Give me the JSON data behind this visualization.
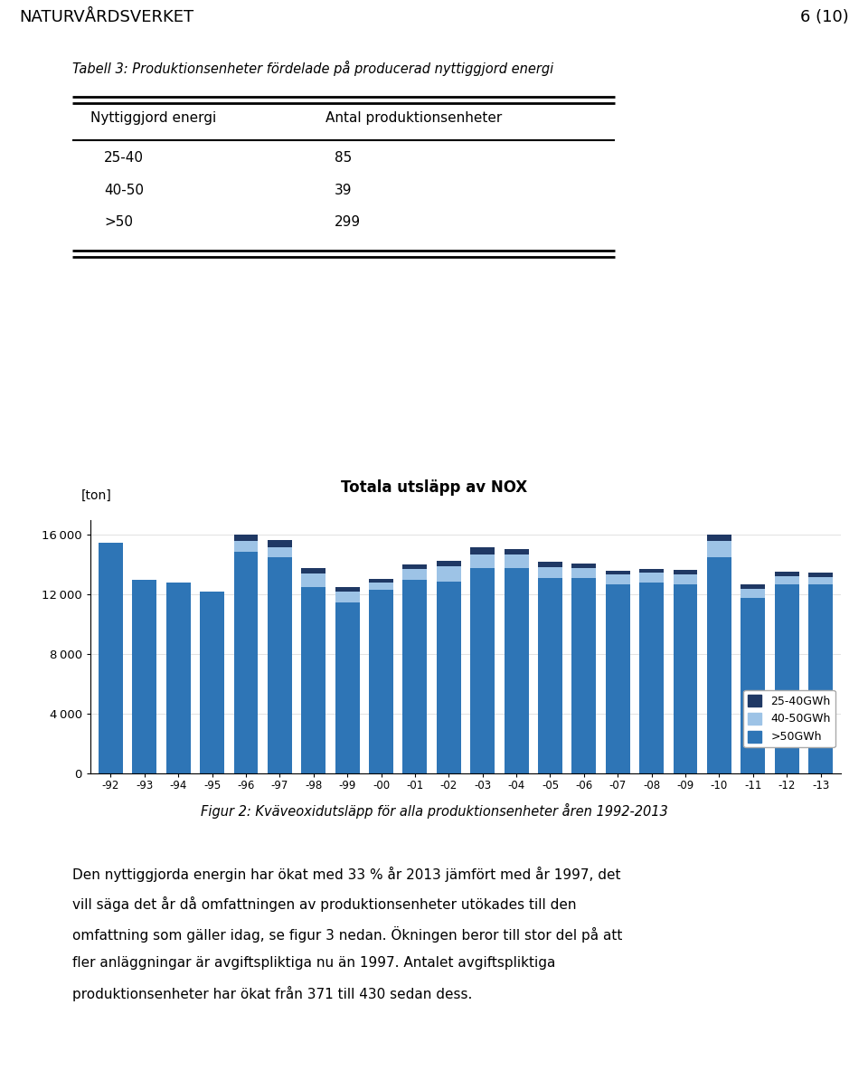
{
  "header_left": "NATURVÅRDSVERKET",
  "header_right": "6 (10)",
  "table_title": "Tabell 3: Produktionsenheter fördelade på producerad nyttiggjord energi",
  "table_col1": "Nyttiggjord energi",
  "table_col2": "Antal produktionsenheter",
  "table_rows": [
    [
      "25-40",
      "85"
    ],
    [
      "40-50",
      "39"
    ],
    [
      ">50",
      "299"
    ]
  ],
  "chart_title": "Totala utsläpp av NOX",
  "chart_ylabel_label": "[ton]",
  "x_labels": [
    "-92",
    "-93",
    "-94",
    "-95",
    "-96",
    "-97",
    "-98",
    "-99",
    "-00",
    "-01",
    "-02",
    "-03",
    "-04",
    "-05",
    "-06",
    "-07",
    "-08",
    "-09",
    "-10",
    "-11",
    "-12",
    "-13"
  ],
  "legend_labels": [
    "25-40GWh",
    "40-50GWh",
    ">50GWh"
  ],
  "color_dark": "#1F3864",
  "color_mid": "#9DC3E6",
  "color_bright": "#2E75B6",
  "series_gt50": [
    15500,
    13000,
    12800,
    12200,
    14900,
    14500,
    12500,
    11500,
    12300,
    13000,
    12900,
    13800,
    13800,
    13100,
    13100,
    12700,
    12800,
    12700,
    14500,
    11800,
    12700,
    12700
  ],
  "series_40_50": [
    0,
    0,
    0,
    0,
    700,
    700,
    900,
    700,
    500,
    700,
    1000,
    900,
    900,
    750,
    700,
    650,
    650,
    650,
    1100,
    600,
    550,
    500
  ],
  "series_25_40": [
    0,
    0,
    0,
    0,
    450,
    450,
    380,
    300,
    270,
    330,
    380,
    450,
    350,
    330,
    280,
    280,
    250,
    300,
    450,
    280,
    260,
    250
  ],
  "ylim": [
    0,
    17000
  ],
  "yticks": [
    0,
    4000,
    8000,
    12000,
    16000
  ],
  "fig_caption": "Figur 2: Kväveoxidutsläpp för alla produktionsenheter åren 1992-2013",
  "body_lines": [
    "Den nyttiggjorda energin har ökat med 33 % år 2013 jämfört med år 1997, det",
    "vill säga det år då omfattningen av produktionsenheter utökades till den",
    "omfattning som gäller idag, se figur 3 nedan. Ökningen beror till stor del på att",
    "fler anläggningar är avgiftspliktiga nu än 1997. Antalet avgiftspliktiga",
    "produktionsenheter har ökat från 371 till 430 sedan dess."
  ],
  "bg": "#FFFFFF"
}
